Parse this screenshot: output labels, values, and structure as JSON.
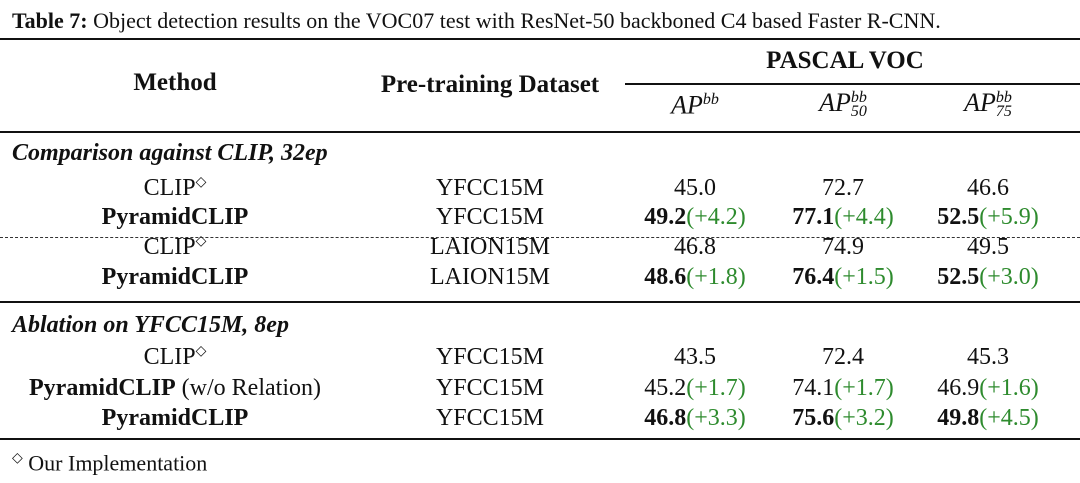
{
  "caption": {
    "label": "Table 7:",
    "text": "Object detection results on the VOC07 test with ResNet-50 backboned C4 based Faster R-CNN."
  },
  "header": {
    "method": "Method",
    "dataset": "Pre-training Dataset",
    "group": "PASCAL VOC",
    "ap": "AP",
    "ap_sup": "bb",
    "ap50_sub": "50",
    "ap75_sub": "75"
  },
  "sections": [
    {
      "title": "Comparison against CLIP, 32ep",
      "rows": [
        {
          "method": "CLIP",
          "method_mark": "◇",
          "dataset": "YFCC15M",
          "ap": "45.0",
          "ap_gain": "",
          "ap50": "72.7",
          "ap50_gain": "",
          "ap75": "46.6",
          "ap75_gain": "",
          "bold": false
        },
        {
          "method": "PyramidCLIP",
          "method_mark": "",
          "dataset": "YFCC15M",
          "ap": "49.2",
          "ap_gain": "(+4.2)",
          "ap50": "77.1",
          "ap50_gain": "(+4.4)",
          "ap75": "52.5",
          "ap75_gain": "(+5.9)",
          "bold": true
        },
        {
          "method": "CLIP",
          "method_mark": "◇",
          "dataset": "LAION15M",
          "ap": "46.8",
          "ap_gain": "",
          "ap50": "74.9",
          "ap50_gain": "",
          "ap75": "49.5",
          "ap75_gain": "",
          "bold": false
        },
        {
          "method": "PyramidCLIP",
          "method_mark": "",
          "dataset": "LAION15M",
          "ap": "48.6",
          "ap_gain": "(+1.8)",
          "ap50": "76.4",
          "ap50_gain": "(+1.5)",
          "ap75": "52.5",
          "ap75_gain": "(+3.0)",
          "bold": true
        }
      ]
    },
    {
      "title": "Ablation on YFCC15M, 8ep",
      "rows": [
        {
          "method": "CLIP",
          "method_mark": "◇",
          "dataset": "YFCC15M",
          "ap": "43.5",
          "ap_gain": "",
          "ap50": "72.4",
          "ap50_gain": "",
          "ap75": "45.3",
          "ap75_gain": "",
          "bold": false
        },
        {
          "method": "PyramidCLIP",
          "method_suffix": " (w/o Relation)",
          "method_mark": "",
          "dataset": "YFCC15M",
          "ap": "45.2",
          "ap_gain": "(+1.7)",
          "ap50": "74.1",
          "ap50_gain": "(+1.7)",
          "ap75": "46.9",
          "ap75_gain": "(+1.6)",
          "bold": false
        },
        {
          "method": "PyramidCLIP",
          "method_mark": "",
          "dataset": "YFCC15M",
          "ap": "46.8",
          "ap_gain": "(+3.3)",
          "ap50": "75.6",
          "ap50_gain": "(+3.2)",
          "ap75": "49.8",
          "ap75_gain": "(+4.5)",
          "bold": true
        }
      ]
    }
  ],
  "footnote": {
    "mark": "◇",
    "text": "Our Implementation"
  },
  "colors": {
    "gain": "#2e8b2e",
    "rule": "#111111"
  }
}
